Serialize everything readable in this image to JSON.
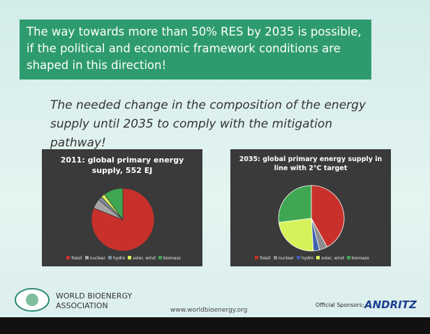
{
  "slide": {
    "headline": "The way towards more than 50% RES by 2035 is possible, if the political and economic framework conditions are shaped in this direction!",
    "subtitle": "The needed change in the composition of the energy supply until 2035 to comply with the mitigation pathway!",
    "organization": "WORLD BIOENERGY ASSOCIATION",
    "website": "www.worldbioenergy.org",
    "sponsors_label": "Official Sponsors:",
    "sponsor": "ANDRITZ"
  },
  "chart_data": [
    {
      "type": "pie",
      "title": "2011: global primary energy supply, 552 EJ",
      "categories": [
        "fossil",
        "nuclear",
        "hydro",
        "solar, wind",
        "biomass"
      ],
      "values": [
        81,
        5,
        2,
        2,
        10
      ],
      "colors": [
        "#c8312b",
        "#a5a5a5",
        "#7f8c9a",
        "#d6f25a",
        "#3fa652"
      ]
    },
    {
      "type": "pie",
      "title": "2035: global primary energy supply in line with 2°C target",
      "categories": [
        "fossil",
        "nuclear",
        "hydro",
        "solar, wind",
        "biomass"
      ],
      "values": [
        42,
        4,
        3,
        24,
        27
      ],
      "colors": [
        "#c8312b",
        "#8c8c8c",
        "#3f5fae",
        "#d6f25a",
        "#3fa652"
      ]
    }
  ]
}
